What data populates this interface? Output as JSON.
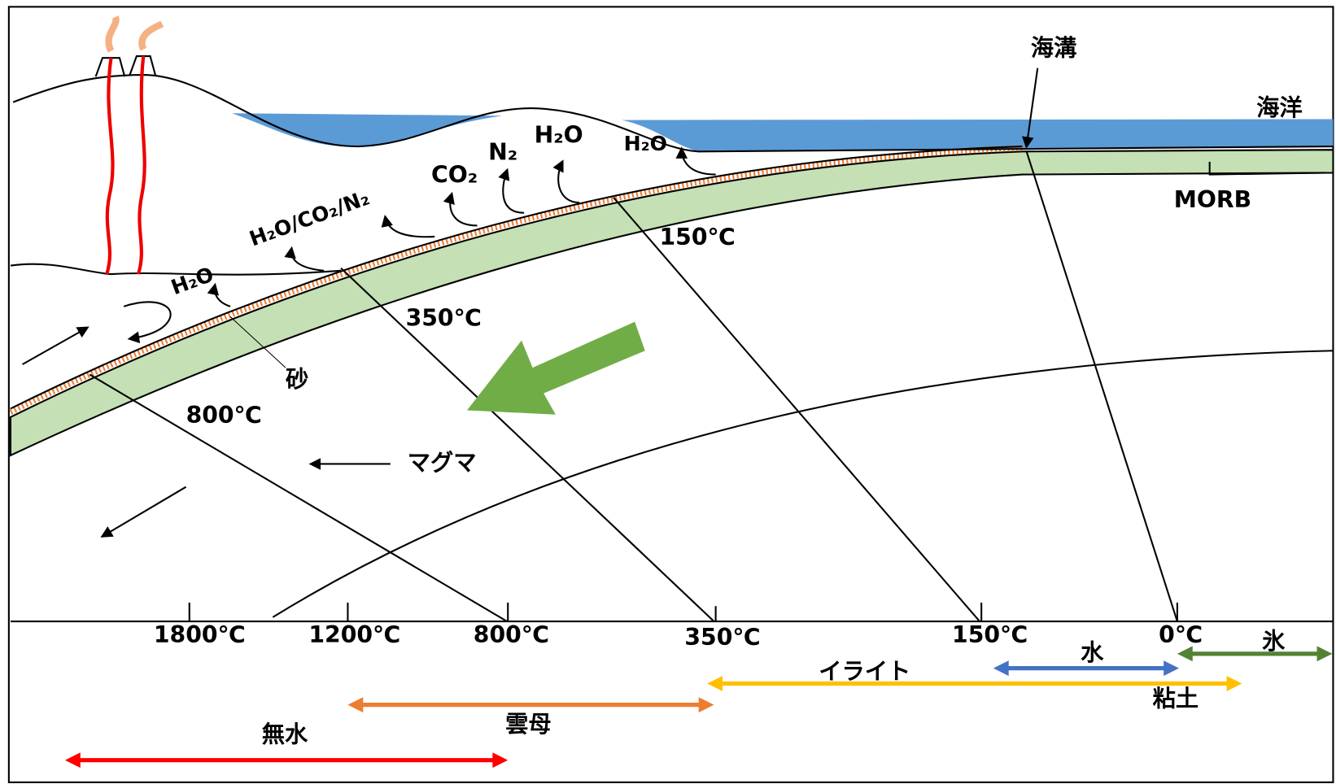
{
  "labels": {
    "trench": "海溝",
    "ocean": "海洋",
    "morb": "MORB",
    "sand": "砂",
    "magma": "マグマ"
  },
  "gases": [
    "H₂O",
    "H₂O/CO₂/N₂",
    "CO₂",
    "N₂",
    "H₂O",
    "H₂O"
  ],
  "isotherms": [
    "150℃",
    "350℃",
    "800℃"
  ],
  "axis_ticks": [
    "1800℃",
    "1200℃",
    "800℃",
    "350℃",
    "150℃",
    "0℃"
  ],
  "ranges": [
    "水",
    "氷",
    "イライト",
    "粘土",
    "雲母",
    "無水"
  ]
}
